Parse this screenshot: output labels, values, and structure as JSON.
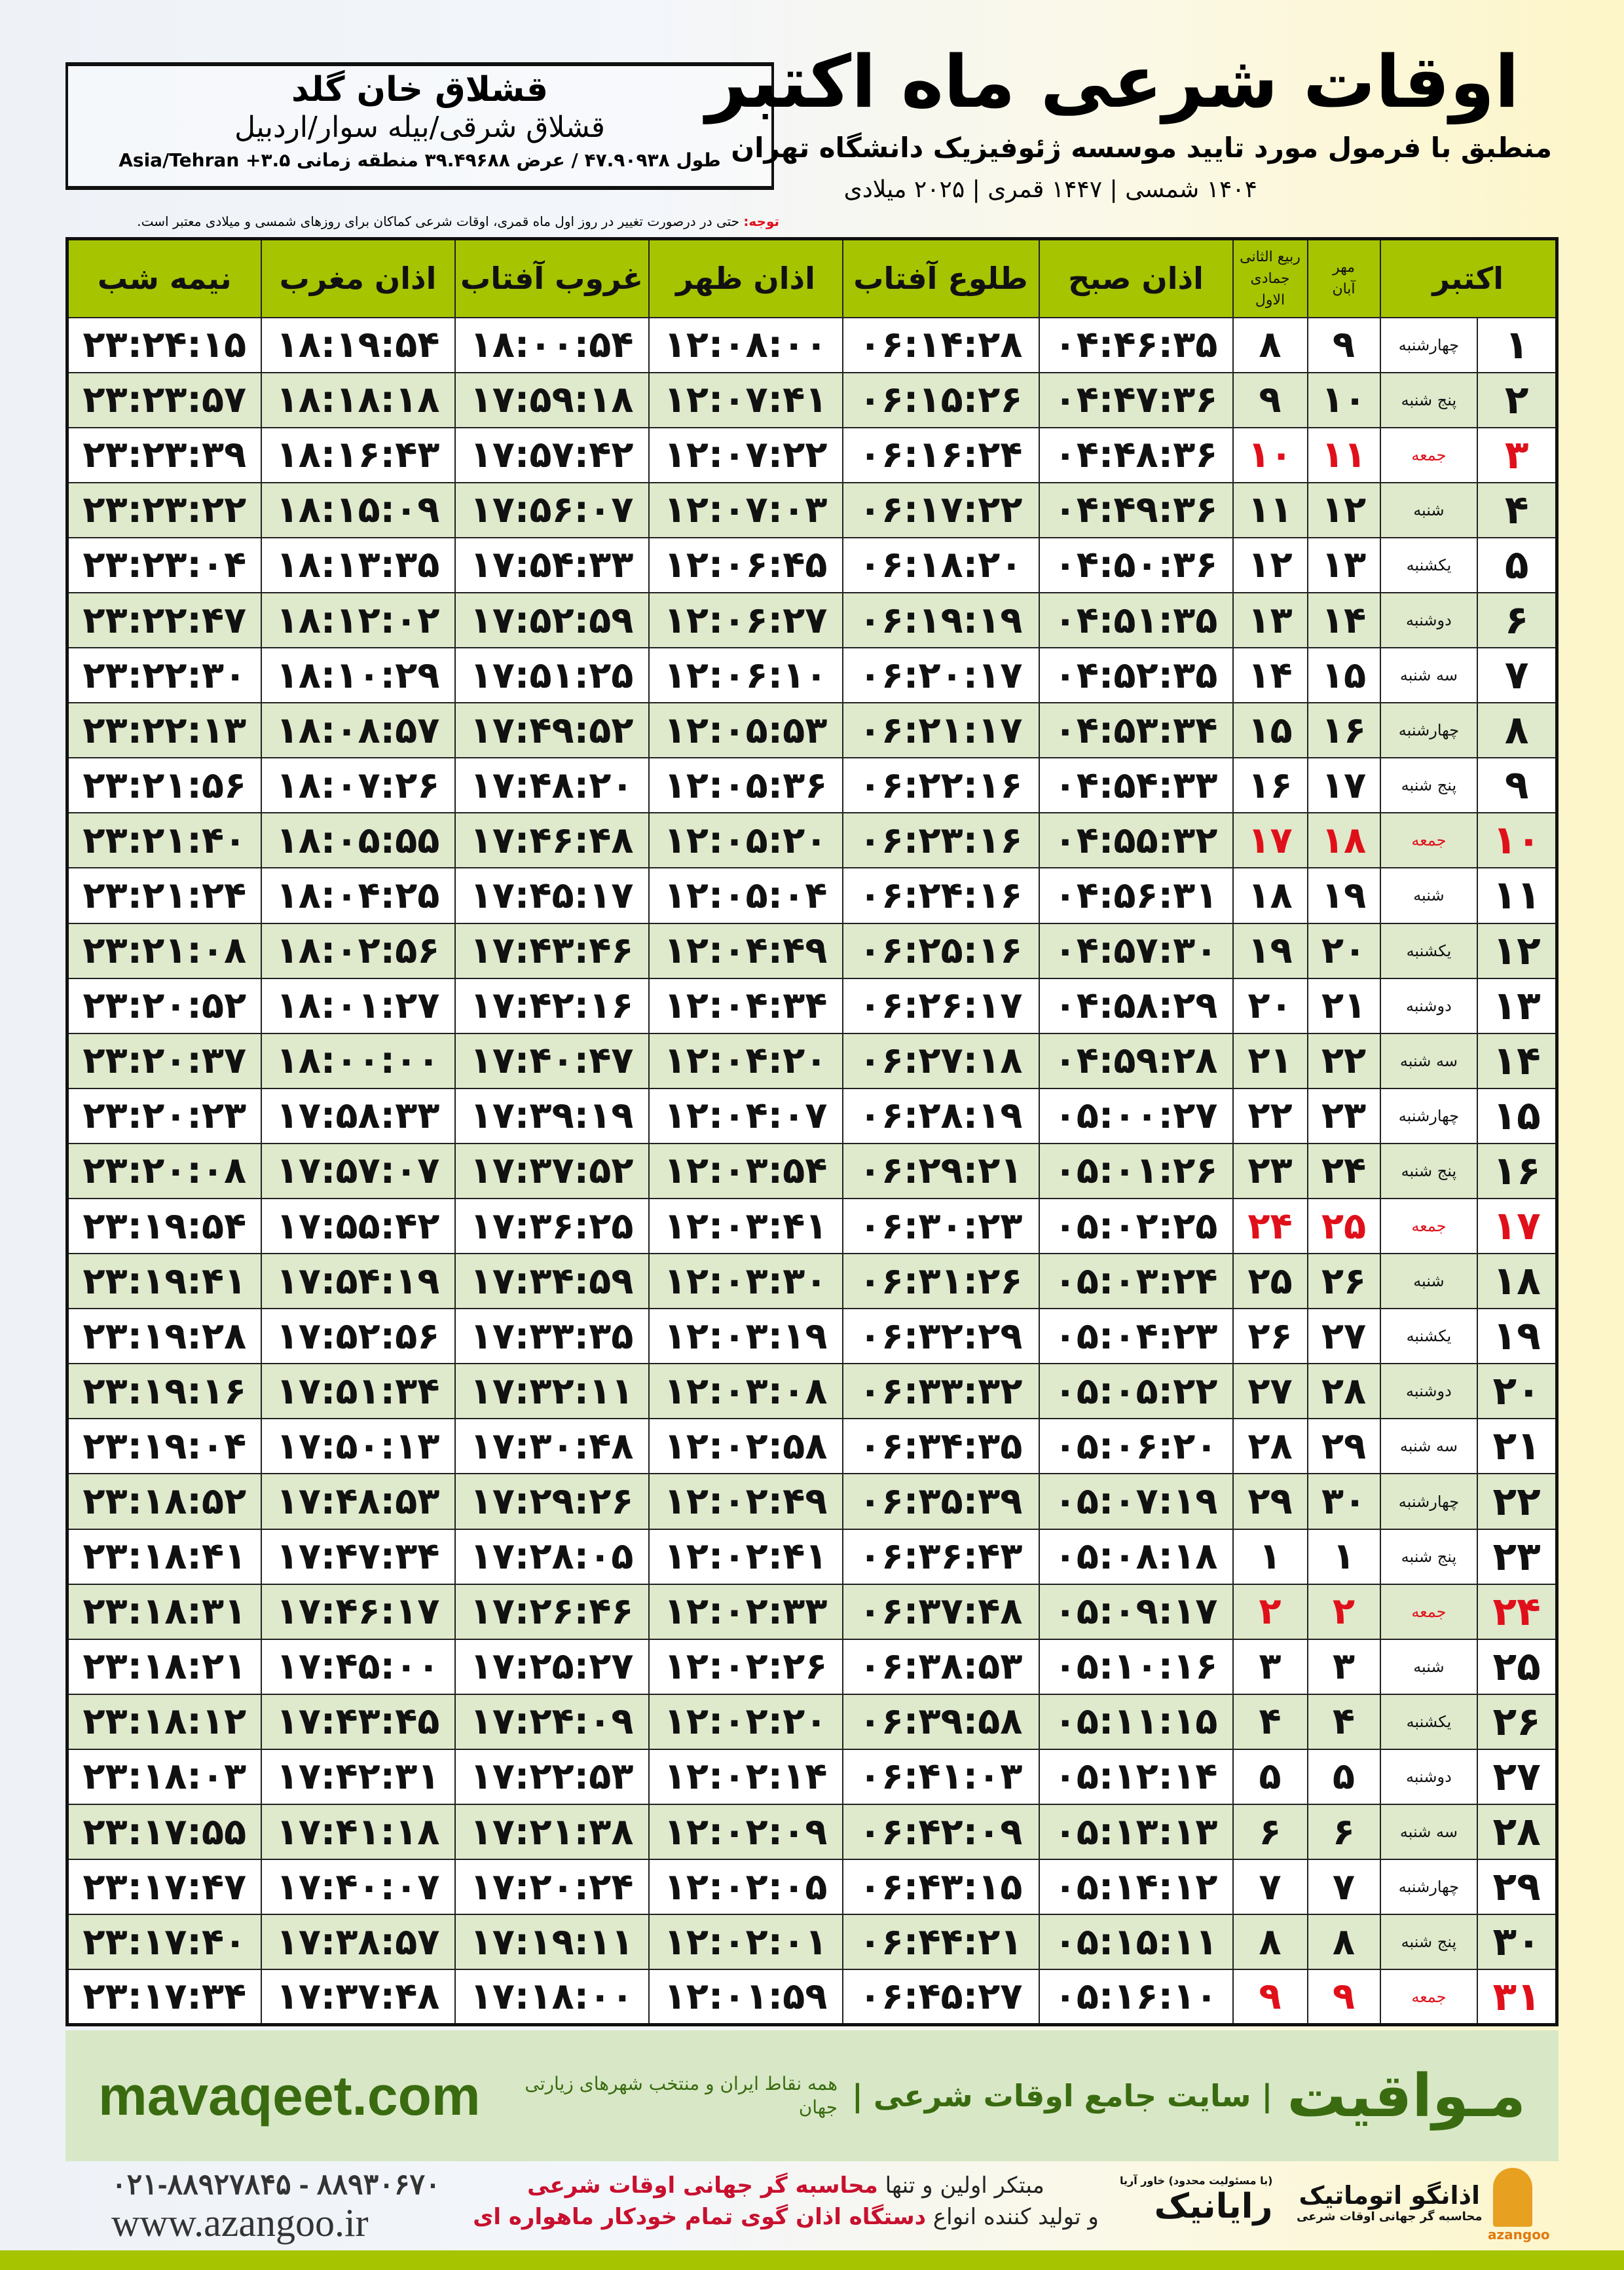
{
  "location": {
    "name": "قشلاق خان گلد",
    "region": "قشلاق شرقی/بیله سوار/اردبیل",
    "coords": "طول ۴۷.۹۰۹۳۸ / عرض ۳۹.۴۹۶۸۸ منطقه زمانی ۳.۵+ Asia/Tehran"
  },
  "title": {
    "main": "اوقات شرعی ماه اکتبر",
    "subtitle": "منطبق با فرمول مورد تایید موسسه ژئوفیزیک دانشگاه تهران",
    "years": "۱۴۰۴ شمسی | ۱۴۴۷ قمری | ۲۰۲۵ میلادی"
  },
  "note": {
    "label": "توجه:",
    "text": " حتی در درصورت تغییر در روز اول ماه قمری، اوقات شرعی کماکان برای روزهای شمسی و میلادی معتبر است."
  },
  "headers": {
    "month": "اکتبر",
    "shamsi_top": "مهر",
    "shamsi_bottom": "آبان",
    "hijri_top": "ربیع الثانی",
    "hijri_bottom": "جمادی الاول",
    "fajr": "اذان صبح",
    "sunrise": "طلوع آفتاب",
    "dhuhr": "اذان ظهر",
    "sunset": "غروب آفتاب",
    "maghrib": "اذان مغرب",
    "midnight": "نیمه شب"
  },
  "colors": {
    "header": "#a6c400",
    "friday": "#e0101a",
    "brand": "#3a6b10"
  },
  "rows": [
    [
      "۱",
      "چهارشنبه",
      "۹",
      "۸",
      "۰۴:۴۶:۳۵",
      "۰۶:۱۴:۲۸",
      "۱۲:۰۸:۰۰",
      "۱۸:۰۰:۵۴",
      "۱۸:۱۹:۵۴",
      "۲۳:۲۴:۱۵"
    ],
    [
      "۲",
      "پنج شنبه",
      "۱۰",
      "۹",
      "۰۴:۴۷:۳۶",
      "۰۶:۱۵:۲۶",
      "۱۲:۰۷:۴۱",
      "۱۷:۵۹:۱۸",
      "۱۸:۱۸:۱۸",
      "۲۳:۲۳:۵۷"
    ],
    [
      "۳",
      "جمعه",
      "۱۱",
      "۱۰",
      "۰۴:۴۸:۳۶",
      "۰۶:۱۶:۲۴",
      "۱۲:۰۷:۲۲",
      "۱۷:۵۷:۴۲",
      "۱۸:۱۶:۴۳",
      "۲۳:۲۳:۳۹"
    ],
    [
      "۴",
      "شنبه",
      "۱۲",
      "۱۱",
      "۰۴:۴۹:۳۶",
      "۰۶:۱۷:۲۲",
      "۱۲:۰۷:۰۳",
      "۱۷:۵۶:۰۷",
      "۱۸:۱۵:۰۹",
      "۲۳:۲۳:۲۲"
    ],
    [
      "۵",
      "یکشنبه",
      "۱۳",
      "۱۲",
      "۰۴:۵۰:۳۶",
      "۰۶:۱۸:۲۰",
      "۱۲:۰۶:۴۵",
      "۱۷:۵۴:۳۳",
      "۱۸:۱۳:۳۵",
      "۲۳:۲۳:۰۴"
    ],
    [
      "۶",
      "دوشنبه",
      "۱۴",
      "۱۳",
      "۰۴:۵۱:۳۵",
      "۰۶:۱۹:۱۹",
      "۱۲:۰۶:۲۷",
      "۱۷:۵۲:۵۹",
      "۱۸:۱۲:۰۲",
      "۲۳:۲۲:۴۷"
    ],
    [
      "۷",
      "سه شنبه",
      "۱۵",
      "۱۴",
      "۰۴:۵۲:۳۵",
      "۰۶:۲۰:۱۷",
      "۱۲:۰۶:۱۰",
      "۱۷:۵۱:۲۵",
      "۱۸:۱۰:۲۹",
      "۲۳:۲۲:۳۰"
    ],
    [
      "۸",
      "چهارشنبه",
      "۱۶",
      "۱۵",
      "۰۴:۵۳:۳۴",
      "۰۶:۲۱:۱۷",
      "۱۲:۰۵:۵۳",
      "۱۷:۴۹:۵۲",
      "۱۸:۰۸:۵۷",
      "۲۳:۲۲:۱۳"
    ],
    [
      "۹",
      "پنج شنبه",
      "۱۷",
      "۱۶",
      "۰۴:۵۴:۳۳",
      "۰۶:۲۲:۱۶",
      "۱۲:۰۵:۳۶",
      "۱۷:۴۸:۲۰",
      "۱۸:۰۷:۲۶",
      "۲۳:۲۱:۵۶"
    ],
    [
      "۱۰",
      "جمعه",
      "۱۸",
      "۱۷",
      "۰۴:۵۵:۳۲",
      "۰۶:۲۳:۱۶",
      "۱۲:۰۵:۲۰",
      "۱۷:۴۶:۴۸",
      "۱۸:۰۵:۵۵",
      "۲۳:۲۱:۴۰"
    ],
    [
      "۱۱",
      "شنبه",
      "۱۹",
      "۱۸",
      "۰۴:۵۶:۳۱",
      "۰۶:۲۴:۱۶",
      "۱۲:۰۵:۰۴",
      "۱۷:۴۵:۱۷",
      "۱۸:۰۴:۲۵",
      "۲۳:۲۱:۲۴"
    ],
    [
      "۱۲",
      "یکشنبه",
      "۲۰",
      "۱۹",
      "۰۴:۵۷:۳۰",
      "۰۶:۲۵:۱۶",
      "۱۲:۰۴:۴۹",
      "۱۷:۴۳:۴۶",
      "۱۸:۰۲:۵۶",
      "۲۳:۲۱:۰۸"
    ],
    [
      "۱۳",
      "دوشنبه",
      "۲۱",
      "۲۰",
      "۰۴:۵۸:۲۹",
      "۰۶:۲۶:۱۷",
      "۱۲:۰۴:۳۴",
      "۱۷:۴۲:۱۶",
      "۱۸:۰۱:۲۷",
      "۲۳:۲۰:۵۲"
    ],
    [
      "۱۴",
      "سه شنبه",
      "۲۲",
      "۲۱",
      "۰۴:۵۹:۲۸",
      "۰۶:۲۷:۱۸",
      "۱۲:۰۴:۲۰",
      "۱۷:۴۰:۴۷",
      "۱۸:۰۰:۰۰",
      "۲۳:۲۰:۳۷"
    ],
    [
      "۱۵",
      "چهارشنبه",
      "۲۳",
      "۲۲",
      "۰۵:۰۰:۲۷",
      "۰۶:۲۸:۱۹",
      "۱۲:۰۴:۰۷",
      "۱۷:۳۹:۱۹",
      "۱۷:۵۸:۳۳",
      "۲۳:۲۰:۲۳"
    ],
    [
      "۱۶",
      "پنج شنبه",
      "۲۴",
      "۲۳",
      "۰۵:۰۱:۲۶",
      "۰۶:۲۹:۲۱",
      "۱۲:۰۳:۵۴",
      "۱۷:۳۷:۵۲",
      "۱۷:۵۷:۰۷",
      "۲۳:۲۰:۰۸"
    ],
    [
      "۱۷",
      "جمعه",
      "۲۵",
      "۲۴",
      "۰۵:۰۲:۲۵",
      "۰۶:۳۰:۲۳",
      "۱۲:۰۳:۴۱",
      "۱۷:۳۶:۲۵",
      "۱۷:۵۵:۴۲",
      "۲۳:۱۹:۵۴"
    ],
    [
      "۱۸",
      "شنبه",
      "۲۶",
      "۲۵",
      "۰۵:۰۳:۲۴",
      "۰۶:۳۱:۲۶",
      "۱۲:۰۳:۳۰",
      "۱۷:۳۴:۵۹",
      "۱۷:۵۴:۱۹",
      "۲۳:۱۹:۴۱"
    ],
    [
      "۱۹",
      "یکشنبه",
      "۲۷",
      "۲۶",
      "۰۵:۰۴:۲۳",
      "۰۶:۳۲:۲۹",
      "۱۲:۰۳:۱۹",
      "۱۷:۳۳:۳۵",
      "۱۷:۵۲:۵۶",
      "۲۳:۱۹:۲۸"
    ],
    [
      "۲۰",
      "دوشنبه",
      "۲۸",
      "۲۷",
      "۰۵:۰۵:۲۲",
      "۰۶:۳۳:۳۲",
      "۱۲:۰۳:۰۸",
      "۱۷:۳۲:۱۱",
      "۱۷:۵۱:۳۴",
      "۲۳:۱۹:۱۶"
    ],
    [
      "۲۱",
      "سه شنبه",
      "۲۹",
      "۲۸",
      "۰۵:۰۶:۲۰",
      "۰۶:۳۴:۳۵",
      "۱۲:۰۲:۵۸",
      "۱۷:۳۰:۴۸",
      "۱۷:۵۰:۱۳",
      "۲۳:۱۹:۰۴"
    ],
    [
      "۲۲",
      "چهارشنبه",
      "۳۰",
      "۲۹",
      "۰۵:۰۷:۱۹",
      "۰۶:۳۵:۳۹",
      "۱۲:۰۲:۴۹",
      "۱۷:۲۹:۲۶",
      "۱۷:۴۸:۵۳",
      "۲۳:۱۸:۵۲"
    ],
    [
      "۲۳",
      "پنج شنبه",
      "۱",
      "۱",
      "۰۵:۰۸:۱۸",
      "۰۶:۳۶:۴۳",
      "۱۲:۰۲:۴۱",
      "۱۷:۲۸:۰۵",
      "۱۷:۴۷:۳۴",
      "۲۳:۱۸:۴۱"
    ],
    [
      "۲۴",
      "جمعه",
      "۲",
      "۲",
      "۰۵:۰۹:۱۷",
      "۰۶:۳۷:۴۸",
      "۱۲:۰۲:۳۳",
      "۱۷:۲۶:۴۶",
      "۱۷:۴۶:۱۷",
      "۲۳:۱۸:۳۱"
    ],
    [
      "۲۵",
      "شنبه",
      "۳",
      "۳",
      "۰۵:۱۰:۱۶",
      "۰۶:۳۸:۵۳",
      "۱۲:۰۲:۲۶",
      "۱۷:۲۵:۲۷",
      "۱۷:۴۵:۰۰",
      "۲۳:۱۸:۲۱"
    ],
    [
      "۲۶",
      "یکشنبه",
      "۴",
      "۴",
      "۰۵:۱۱:۱۵",
      "۰۶:۳۹:۵۸",
      "۱۲:۰۲:۲۰",
      "۱۷:۲۴:۰۹",
      "۱۷:۴۳:۴۵",
      "۲۳:۱۸:۱۲"
    ],
    [
      "۲۷",
      "دوشنبه",
      "۵",
      "۵",
      "۰۵:۱۲:۱۴",
      "۰۶:۴۱:۰۳",
      "۱۲:۰۲:۱۴",
      "۱۷:۲۲:۵۳",
      "۱۷:۴۲:۳۱",
      "۲۳:۱۸:۰۳"
    ],
    [
      "۲۸",
      "سه شنبه",
      "۶",
      "۶",
      "۰۵:۱۳:۱۳",
      "۰۶:۴۲:۰۹",
      "۱۲:۰۲:۰۹",
      "۱۷:۲۱:۳۸",
      "۱۷:۴۱:۱۸",
      "۲۳:۱۷:۵۵"
    ],
    [
      "۲۹",
      "چهارشنبه",
      "۷",
      "۷",
      "۰۵:۱۴:۱۲",
      "۰۶:۴۳:۱۵",
      "۱۲:۰۲:۰۵",
      "۱۷:۲۰:۲۴",
      "۱۷:۴۰:۰۷",
      "۲۳:۱۷:۴۷"
    ],
    [
      "۳۰",
      "پنج شنبه",
      "۸",
      "۸",
      "۰۵:۱۵:۱۱",
      "۰۶:۴۴:۲۱",
      "۱۲:۰۲:۰۱",
      "۱۷:۱۹:۱۱",
      "۱۷:۳۸:۵۷",
      "۲۳:۱۷:۴۰"
    ],
    [
      "۳۱",
      "جمعه",
      "۹",
      "۹",
      "۰۵:۱۶:۱۰",
      "۰۶:۴۵:۲۷",
      "۱۲:۰۱:۵۹",
      "۱۷:۱۸:۰۰",
      "۱۷:۳۷:۴۸",
      "۲۳:۱۷:۳۴"
    ]
  ],
  "banner": {
    "domain": "mavaqeet.com",
    "brand": "مـواقیت",
    "slogan": "| سایت جامع اوقات شرعی |",
    "tagline": "همه نقاط ایران و منتخب شهرهای زیارتی جهان"
  },
  "footer": {
    "phone": "۰۲۱-۸۸۹۲۷۸۴۵ - ۸۸۹۳۰۶۷۰",
    "website": "www.azangoo.ir",
    "line1_a": "مبتکر اولین و تنها ",
    "line1_b": "محاسبه گر جهانی اوقات شرعی",
    "line2_a": "و تولید کننده انواع ",
    "line2_b": "دستگاه اذان گوی تمام خودکار ماهواره ای",
    "logo_rayanik": "رایانیک",
    "logo_rayanik_sub": "(با مسئولیت محدود) خاور آریا",
    "logo_azangoo": "اذانگو اتوماتیک",
    "logo_azangoo_sub": "محاسبه گر جهانی اوقات شرعی",
    "logo_azangoo_latin": "azangoo"
  }
}
